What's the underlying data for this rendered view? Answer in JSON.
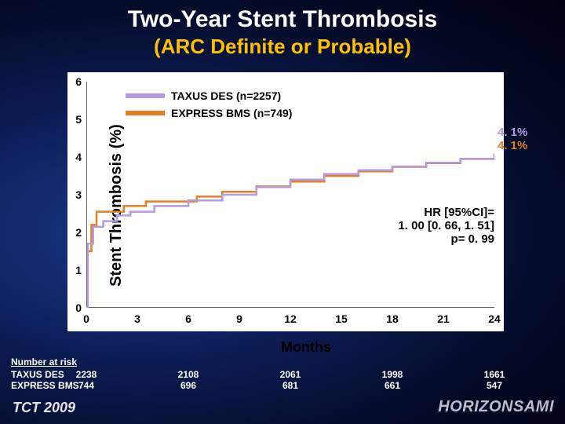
{
  "title": "Two-Year Stent Thrombosis",
  "subtitle": "(ARC Definite or Probable)",
  "footer_left": "TCT 2009",
  "footer_right": "HORIZONSAMI",
  "ylabel": "Stent Thrombosis (%)",
  "xlabel": "Months",
  "ytick_labels": [
    "0",
    "1",
    "2",
    "3",
    "4",
    "5",
    "6"
  ],
  "xtick_labels": [
    "0",
    "3",
    "6",
    "9",
    "12",
    "15",
    "18",
    "21",
    "24"
  ],
  "legend": {
    "series1": {
      "label": "TAXUS DES (n=2257)",
      "color": "#b399e6"
    },
    "series2": {
      "label": "EXPRESS BMS (n=749)",
      "color": "#e67e22"
    }
  },
  "end_labels": {
    "top": "4. 1%",
    "bottom": "4. 1%",
    "color_top": "#b399e6",
    "color_bottom": "#e67e22"
  },
  "stats": {
    "line1": "HR [95%CI]=",
    "line2": "1. 00 [0. 66, 1. 51]",
    "line3": "p= 0. 99"
  },
  "risk": {
    "header": "Number at risk",
    "rows": [
      {
        "label": "TAXUS DES",
        "cells": [
          "2238",
          "2108",
          "2061",
          "1998",
          "1661"
        ]
      },
      {
        "label": "EXPRESS BMS",
        "cells": [
          "744",
          "696",
          "681",
          "661",
          "547"
        ]
      }
    ]
  },
  "chart": {
    "ylim": [
      0,
      6
    ],
    "xlim": [
      0,
      24
    ],
    "series1_color": "#b399e6",
    "series2_color": "#e67e22",
    "line_width": 2.5,
    "series1_points": [
      [
        0,
        0
      ],
      [
        0.08,
        1.7
      ],
      [
        0.4,
        2.15
      ],
      [
        1.0,
        2.3
      ],
      [
        1.8,
        2.45
      ],
      [
        2.6,
        2.55
      ],
      [
        4,
        2.7
      ],
      [
        6,
        2.85
      ],
      [
        8,
        3.0
      ],
      [
        10,
        3.2
      ],
      [
        12,
        3.4
      ],
      [
        14,
        3.55
      ],
      [
        16,
        3.65
      ],
      [
        18,
        3.75
      ],
      [
        20,
        3.85
      ],
      [
        22,
        3.95
      ],
      [
        24,
        4.1
      ]
    ],
    "series2_points": [
      [
        0,
        0
      ],
      [
        0.08,
        1.5
      ],
      [
        0.3,
        2.2
      ],
      [
        0.6,
        2.55
      ],
      [
        1.2,
        2.55
      ],
      [
        2.2,
        2.7
      ],
      [
        3.5,
        2.82
      ],
      [
        5,
        2.82
      ],
      [
        6.5,
        2.95
      ],
      [
        8,
        3.08
      ],
      [
        10,
        3.22
      ],
      [
        12,
        3.35
      ],
      [
        14,
        3.5
      ],
      [
        16,
        3.62
      ],
      [
        18,
        3.74
      ],
      [
        20,
        3.84
      ],
      [
        22,
        3.95
      ],
      [
        24,
        4.1
      ]
    ]
  }
}
